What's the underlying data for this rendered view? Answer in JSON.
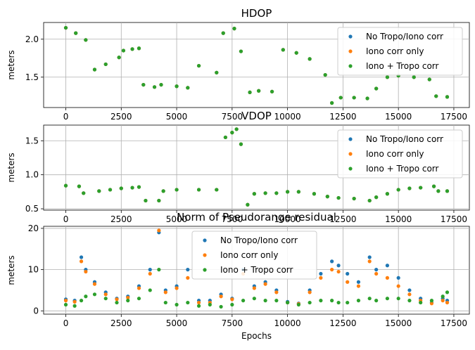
{
  "colors": {
    "series": [
      "#1f77b4",
      "#ff7f0e",
      "#2ca02c"
    ],
    "grid": "#b0b0b0",
    "axis": "#000000",
    "legend_edge": "#cccccc"
  },
  "chart_data": [
    {
      "type": "scatter",
      "title": "HDOP",
      "xlabel": "",
      "ylabel": "meters",
      "xlim": [
        -1000,
        18200
      ],
      "ylim": [
        1.1,
        2.22
      ],
      "xticks": [
        0,
        2500,
        5000,
        7500,
        10000,
        12500,
        15000,
        17500
      ],
      "xtick_labels": [
        "0",
        "2500",
        "5000",
        "7500",
        "10000",
        "12500",
        "15000",
        "17500"
      ],
      "yticks": [
        1.5,
        2.0
      ],
      "ytick_labels": [
        "1.5",
        "2.0"
      ],
      "grid": true,
      "legend_loc": "upper right",
      "legend": [
        "No Tropo/Iono corr",
        "Iono corr only",
        "Iono + Tropo corr"
      ],
      "series": [
        {
          "name": "No Tropo/Iono corr",
          "x": [
            0,
            450,
            900,
            1300,
            1800,
            2400,
            2600,
            3000,
            3300,
            3500,
            4000,
            4300,
            5000,
            5500,
            6000,
            6800,
            7100,
            7600,
            7900,
            8300,
            8700,
            9300,
            9800,
            10400,
            11000,
            11700,
            12000,
            12400,
            13000,
            13600,
            14000,
            14500,
            15000,
            15700,
            16400,
            16700,
            17200
          ],
          "y": [
            2.15,
            2.08,
            1.99,
            1.6,
            1.67,
            1.76,
            1.85,
            1.87,
            1.88,
            1.4,
            1.37,
            1.4,
            1.38,
            1.36,
            1.65,
            1.56,
            2.08,
            2.14,
            1.84,
            1.3,
            1.32,
            1.31,
            1.86,
            1.82,
            1.74,
            1.53,
            1.16,
            1.23,
            1.23,
            1.22,
            1.35,
            1.5,
            1.52,
            1.5,
            1.47,
            1.25,
            1.24
          ]
        },
        {
          "name": "Iono corr only",
          "x": [
            0,
            450,
            900,
            1300,
            1800,
            2400,
            2600,
            3000,
            3300,
            3500,
            4000,
            4300,
            5000,
            5500,
            6000,
            6800,
            7100,
            7600,
            7900,
            8300,
            8700,
            9300,
            9800,
            10400,
            11000,
            11700,
            12000,
            12400,
            13000,
            13600,
            14000,
            14500,
            15000,
            15700,
            16400,
            16700,
            17200
          ],
          "y": [
            2.15,
            2.08,
            1.99,
            1.6,
            1.67,
            1.76,
            1.85,
            1.87,
            1.88,
            1.4,
            1.37,
            1.4,
            1.38,
            1.36,
            1.65,
            1.56,
            2.08,
            2.14,
            1.84,
            1.3,
            1.32,
            1.31,
            1.86,
            1.82,
            1.74,
            1.53,
            1.16,
            1.23,
            1.23,
            1.22,
            1.35,
            1.5,
            1.52,
            1.5,
            1.47,
            1.25,
            1.24
          ]
        },
        {
          "name": "Iono + Tropo corr",
          "x": [
            0,
            450,
            900,
            1300,
            1800,
            2400,
            2600,
            3000,
            3300,
            3500,
            4000,
            4300,
            5000,
            5500,
            6000,
            6800,
            7100,
            7600,
            7900,
            8300,
            8700,
            9300,
            9800,
            10400,
            11000,
            11700,
            12000,
            12400,
            13000,
            13600,
            14000,
            14500,
            15000,
            15700,
            16400,
            16700,
            17200
          ],
          "y": [
            2.15,
            2.08,
            1.99,
            1.6,
            1.67,
            1.76,
            1.85,
            1.87,
            1.88,
            1.4,
            1.37,
            1.4,
            1.38,
            1.36,
            1.65,
            1.56,
            2.08,
            2.14,
            1.84,
            1.3,
            1.32,
            1.31,
            1.86,
            1.82,
            1.74,
            1.53,
            1.16,
            1.23,
            1.23,
            1.22,
            1.35,
            1.5,
            1.52,
            1.5,
            1.47,
            1.25,
            1.24
          ]
        }
      ]
    },
    {
      "type": "scatter",
      "title": "VDOP",
      "xlabel": "",
      "ylabel": "meters",
      "xlim": [
        -1000,
        18200
      ],
      "ylim": [
        0.48,
        1.73
      ],
      "xticks": [
        0,
        2500,
        5000,
        7500,
        10000,
        12500,
        15000,
        17500
      ],
      "xtick_labels": [
        "0",
        "2500",
        "5000",
        "7500",
        "10000",
        "12500",
        "15000",
        "17500"
      ],
      "yticks": [
        0.5,
        1.0,
        1.5
      ],
      "ytick_labels": [
        "0.5",
        "1.0",
        "1.5"
      ],
      "grid": true,
      "legend_loc": "upper right",
      "legend": [
        "No Tropo/Iono corr",
        "Iono corr only",
        "Iono + Tropo corr"
      ],
      "series": [
        {
          "name": "No Tropo/Iono corr",
          "x": [
            0,
            600,
            800,
            1500,
            2000,
            2500,
            3000,
            3300,
            3600,
            4200,
            4400,
            5000,
            6000,
            6800,
            7200,
            7500,
            7700,
            7900,
            8200,
            8500,
            9000,
            9500,
            10000,
            10500,
            11200,
            11800,
            12300,
            13000,
            13700,
            14000,
            14500,
            15000,
            15500,
            16000,
            16600,
            16800,
            17200
          ],
          "y": [
            0.84,
            0.83,
            0.73,
            0.76,
            0.78,
            0.8,
            0.81,
            0.82,
            0.62,
            0.62,
            0.76,
            0.78,
            0.78,
            0.78,
            1.55,
            1.62,
            1.67,
            1.45,
            0.56,
            0.72,
            0.73,
            0.73,
            0.75,
            0.75,
            0.72,
            0.68,
            0.66,
            0.65,
            0.62,
            0.67,
            0.72,
            0.78,
            0.8,
            0.81,
            0.83,
            0.76,
            0.76
          ]
        },
        {
          "name": "Iono corr only",
          "x": [
            0,
            600,
            800,
            1500,
            2000,
            2500,
            3000,
            3300,
            3600,
            4200,
            4400,
            5000,
            6000,
            6800,
            7200,
            7500,
            7700,
            7900,
            8200,
            8500,
            9000,
            9500,
            10000,
            10500,
            11200,
            11800,
            12300,
            13000,
            13700,
            14000,
            14500,
            15000,
            15500,
            16000,
            16600,
            16800,
            17200
          ],
          "y": [
            0.84,
            0.83,
            0.73,
            0.76,
            0.78,
            0.8,
            0.81,
            0.82,
            0.62,
            0.62,
            0.76,
            0.78,
            0.78,
            0.78,
            1.55,
            1.62,
            1.67,
            1.45,
            0.56,
            0.72,
            0.73,
            0.73,
            0.75,
            0.75,
            0.72,
            0.68,
            0.66,
            0.65,
            0.62,
            0.67,
            0.72,
            0.78,
            0.8,
            0.81,
            0.83,
            0.76,
            0.76
          ]
        },
        {
          "name": "Iono + Tropo corr",
          "x": [
            0,
            600,
            800,
            1500,
            2000,
            2500,
            3000,
            3300,
            3600,
            4200,
            4400,
            5000,
            6000,
            6800,
            7200,
            7500,
            7700,
            7900,
            8200,
            8500,
            9000,
            9500,
            10000,
            10500,
            11200,
            11800,
            12300,
            13000,
            13700,
            14000,
            14500,
            15000,
            15500,
            16000,
            16600,
            16800,
            17200
          ],
          "y": [
            0.84,
            0.83,
            0.73,
            0.76,
            0.78,
            0.8,
            0.81,
            0.82,
            0.62,
            0.62,
            0.76,
            0.78,
            0.78,
            0.78,
            1.55,
            1.62,
            1.67,
            1.45,
            0.56,
            0.72,
            0.73,
            0.73,
            0.75,
            0.75,
            0.72,
            0.68,
            0.66,
            0.65,
            0.62,
            0.67,
            0.72,
            0.78,
            0.8,
            0.81,
            0.83,
            0.76,
            0.76
          ]
        }
      ]
    },
    {
      "type": "scatter",
      "title": "Norm of Pseudorange residual",
      "xlabel": "Epochs",
      "ylabel": "meters",
      "xlim": [
        -1000,
        18200
      ],
      "ylim": [
        -0.8,
        20.5
      ],
      "xticks": [
        0,
        2500,
        5000,
        7500,
        10000,
        12500,
        15000,
        17500
      ],
      "xtick_labels": [
        "0",
        "2500",
        "5000",
        "7500",
        "10000",
        "12500",
        "15000",
        "17500"
      ],
      "yticks": [
        0,
        10,
        20
      ],
      "ytick_labels": [
        "0",
        "10",
        "20"
      ],
      "grid": true,
      "legend_loc": "upper center",
      "legend": [
        "No Tropo/Iono corr",
        "Iono corr only",
        "Iono + Tropo corr"
      ],
      "series": [
        {
          "name": "No Tropo/Iono corr",
          "x": [
            0,
            400,
            700,
            900,
            1300,
            1800,
            2300,
            2800,
            3300,
            3800,
            4200,
            4500,
            5000,
            5500,
            6000,
            6500,
            7000,
            7500,
            8000,
            8500,
            9000,
            9500,
            10000,
            10500,
            11000,
            11500,
            12000,
            12300,
            12700,
            13200,
            13700,
            14000,
            14500,
            15000,
            15500,
            16000,
            16500,
            17000,
            17200
          ],
          "y": [
            2.8,
            2.5,
            13,
            10,
            7,
            4.5,
            3,
            3.5,
            6,
            10,
            19,
            5,
            6,
            10,
            2.5,
            2.5,
            4,
            3,
            10,
            6,
            7,
            5,
            2.2,
            1.8,
            5,
            9,
            12,
            11,
            9,
            7,
            13,
            10,
            11,
            8,
            5,
            3,
            2,
            3,
            2.5
          ]
        },
        {
          "name": "Iono corr only",
          "x": [
            0,
            400,
            700,
            900,
            1300,
            1800,
            2300,
            2800,
            3300,
            3800,
            4200,
            4500,
            5000,
            5500,
            6000,
            6500,
            7000,
            7500,
            8000,
            8500,
            9000,
            9500,
            10000,
            10500,
            11000,
            11500,
            12000,
            12300,
            12700,
            13200,
            13700,
            14000,
            14500,
            15000,
            15500,
            16000,
            16500,
            17000,
            17200
          ],
          "y": [
            2.5,
            2.2,
            12,
            9.5,
            6.5,
            4,
            2.8,
            3.2,
            5.5,
            9,
            19.5,
            4.5,
            5.5,
            8,
            2,
            2,
            3.5,
            2.8,
            9,
            5.5,
            6.5,
            4.5,
            2,
            1.7,
            4.5,
            8,
            10,
            9.5,
            7,
            6,
            12,
            9,
            8,
            6,
            4,
            2.5,
            1.8,
            2.5,
            2
          ]
        },
        {
          "name": "Iono + Tropo corr",
          "x": [
            0,
            400,
            700,
            900,
            1300,
            1800,
            2300,
            2800,
            3300,
            3800,
            4200,
            4500,
            5000,
            5500,
            6000,
            6500,
            7000,
            7500,
            8000,
            8500,
            9000,
            9500,
            10000,
            10500,
            11000,
            11500,
            12000,
            12300,
            12700,
            13200,
            13700,
            14000,
            14500,
            15000,
            15500,
            16000,
            16500,
            17000,
            17200
          ],
          "y": [
            1.5,
            1.2,
            2.5,
            3.5,
            4,
            3,
            2,
            2.5,
            3,
            5,
            10,
            2,
            1.5,
            2,
            1.2,
            1.5,
            1,
            1.5,
            2.5,
            3,
            2.5,
            2.5,
            2,
            1.5,
            2,
            2.5,
            2.5,
            2,
            2,
            2.5,
            3,
            2.5,
            3,
            3,
            2.5,
            2,
            2.5,
            3.5,
            4.5
          ]
        }
      ]
    }
  ]
}
